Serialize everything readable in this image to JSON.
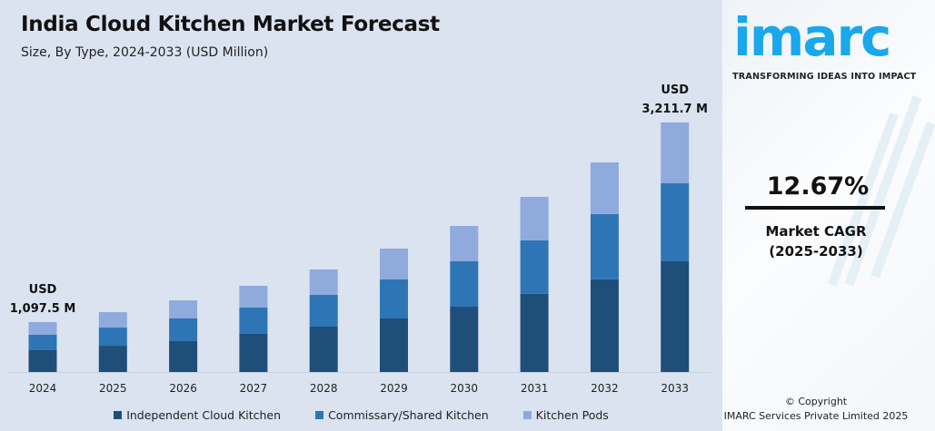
{
  "chart_data": {
    "type": "bar",
    "stacked": true,
    "title": "India Cloud Kitchen Market Forecast",
    "subtitle": "Size, By Type, 2024-2033 (USD Million)",
    "categories": [
      "2024",
      "2025",
      "2026",
      "2027",
      "2028",
      "2029",
      "2030",
      "2031",
      "2032",
      "2033"
    ],
    "series": [
      {
        "name": "Independent Cloud Kitchen",
        "color": "#1f4e79",
        "values": [
          479,
          528,
          572,
          655,
          732,
          814,
          946,
          1081,
          1233,
          1425
        ]
      },
      {
        "name": "Commissary/Shared Kitchen",
        "color": "#2e75b6",
        "values": [
          339,
          365,
          420,
          452,
          513,
          593,
          658,
          742,
          870,
          1005
        ]
      },
      {
        "name": "Kitchen Pods",
        "color": "#8faadc",
        "values": [
          280,
          310,
          336,
          375,
          410,
          469,
          512,
          601,
          686,
          782
        ]
      }
    ],
    "annotations": [
      {
        "category": "2024",
        "line1": "USD",
        "line2": "1,097.5 M"
      },
      {
        "category": "2033",
        "line1": "USD",
        "line2": "3,211.7 M"
      }
    ],
    "legend": "bottom",
    "grid": false,
    "y_axis_visible": false
  },
  "brand": {
    "logo": "imarc",
    "tagline": "TRANSFORMING IDEAS INTO IMPACT",
    "color": "#1aa7ec"
  },
  "cagr": {
    "value": "12.67%",
    "label": "Market CAGR",
    "period": "(2025-2033)"
  },
  "copyright": {
    "line1": "© Copyright",
    "line2": "IMARC Services Private Limited 2025"
  }
}
